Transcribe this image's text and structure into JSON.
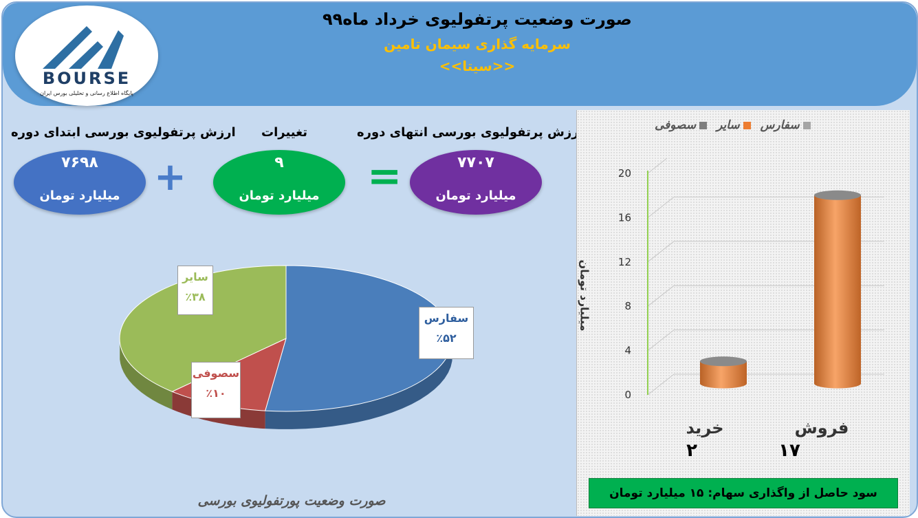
{
  "header": {
    "title": "صورت وضعیت پرتفولیوی خرداد ماه۹۹",
    "company": "سرمایه گذاری سیمان تامین",
    "symbol": "<<سیتا>>"
  },
  "logo": {
    "text": "BOURSE",
    "subtitle": "پایگاه اطلاع رسانی و تحلیلی بورس ایران"
  },
  "summary": {
    "end_label": "ارزش پرتفولیوی بورسی انتهای دوره",
    "end_value": "۷۷۰۷",
    "change_label": "تغییرات",
    "change_value": "۹",
    "start_label": "ارزش پرتفولیوی بورسی ابتدای دوره",
    "start_value": "۷۶۹۸",
    "unit": "میلیارد تومان",
    "plus": "+",
    "equals": "="
  },
  "chart_data": [
    {
      "type": "pie",
      "title": "صورت وضعیت پورتفولیوی بورسی",
      "labels": [
        "سفارس",
        "سصوفی",
        "سایر"
      ],
      "values": [
        52,
        10,
        38
      ],
      "value_labels": [
        "٪۵۲",
        "٪۱۰",
        "٪۳۸"
      ],
      "colors": [
        "#4a7ebb",
        "#c0504d",
        "#9bbb59"
      ]
    },
    {
      "type": "bar",
      "categories": [
        "فروش",
        "خرید"
      ],
      "series": [
        {
          "name": "سفارس",
          "values": [
            0,
            0
          ],
          "color": "#a5a5a5"
        },
        {
          "name": "سایر",
          "values": [
            17,
            2
          ],
          "color": "#ed7d31"
        },
        {
          "name": "سصوفی",
          "values": [
            0,
            0
          ],
          "color": "#7f7f7f"
        }
      ],
      "value_labels": [
        "۱۷",
        "۲"
      ],
      "ylabel": "میلیارد تومان",
      "ylim": [
        0,
        20
      ],
      "yticks": [
        "0",
        "4",
        "8",
        "12",
        "16",
        "20"
      ],
      "legend_position": "top"
    }
  ],
  "profit_note": "سود حاصل از واگذاری سهام: ۱۵ میلیارد تومان"
}
